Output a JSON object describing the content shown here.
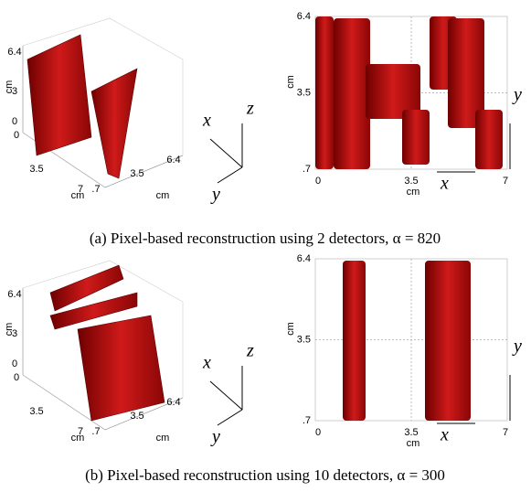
{
  "panels": [
    {
      "caption": "(a) Pixel-based reconstruction using 2 detectors, α = 820",
      "volume": {
        "z_ticks": [
          "6.4",
          "3",
          "0"
        ],
        "z_label": "cm",
        "x_ticks": [
          "0",
          "3.5",
          "7"
        ],
        "x_label": "cm",
        "y_ticks": [
          ".7",
          "3.5",
          "6.4"
        ],
        "y_label": "cm"
      },
      "triad": {
        "x": "x",
        "y": "y",
        "z": "z"
      },
      "slice": {
        "y_ticks": [
          "6.4",
          "3.5",
          ".7"
        ],
        "y_label": "cm",
        "x_ticks": [
          "0",
          "3.5",
          "7"
        ],
        "x_label": "cm",
        "x_arrow": "x",
        "y_arrow": "y"
      }
    },
    {
      "caption": "(b) Pixel-based reconstruction using 10 detectors, α = 300",
      "volume": {
        "z_ticks": [
          "6.4",
          "3",
          "0"
        ],
        "z_label": "cm",
        "x_ticks": [
          "0",
          "3.5",
          "7"
        ],
        "x_label": "cm",
        "y_ticks": [
          ".7",
          "3.5",
          "6.4"
        ],
        "y_label": "cm"
      },
      "triad": {
        "x": "x",
        "y": "y",
        "z": "z"
      },
      "slice": {
        "y_ticks": [
          "6.4",
          "3.5",
          ".7"
        ],
        "y_label": "cm",
        "x_ticks": [
          "0",
          "3.5",
          "7"
        ],
        "x_label": "cm",
        "x_arrow": "x",
        "y_arrow": "y"
      }
    }
  ]
}
